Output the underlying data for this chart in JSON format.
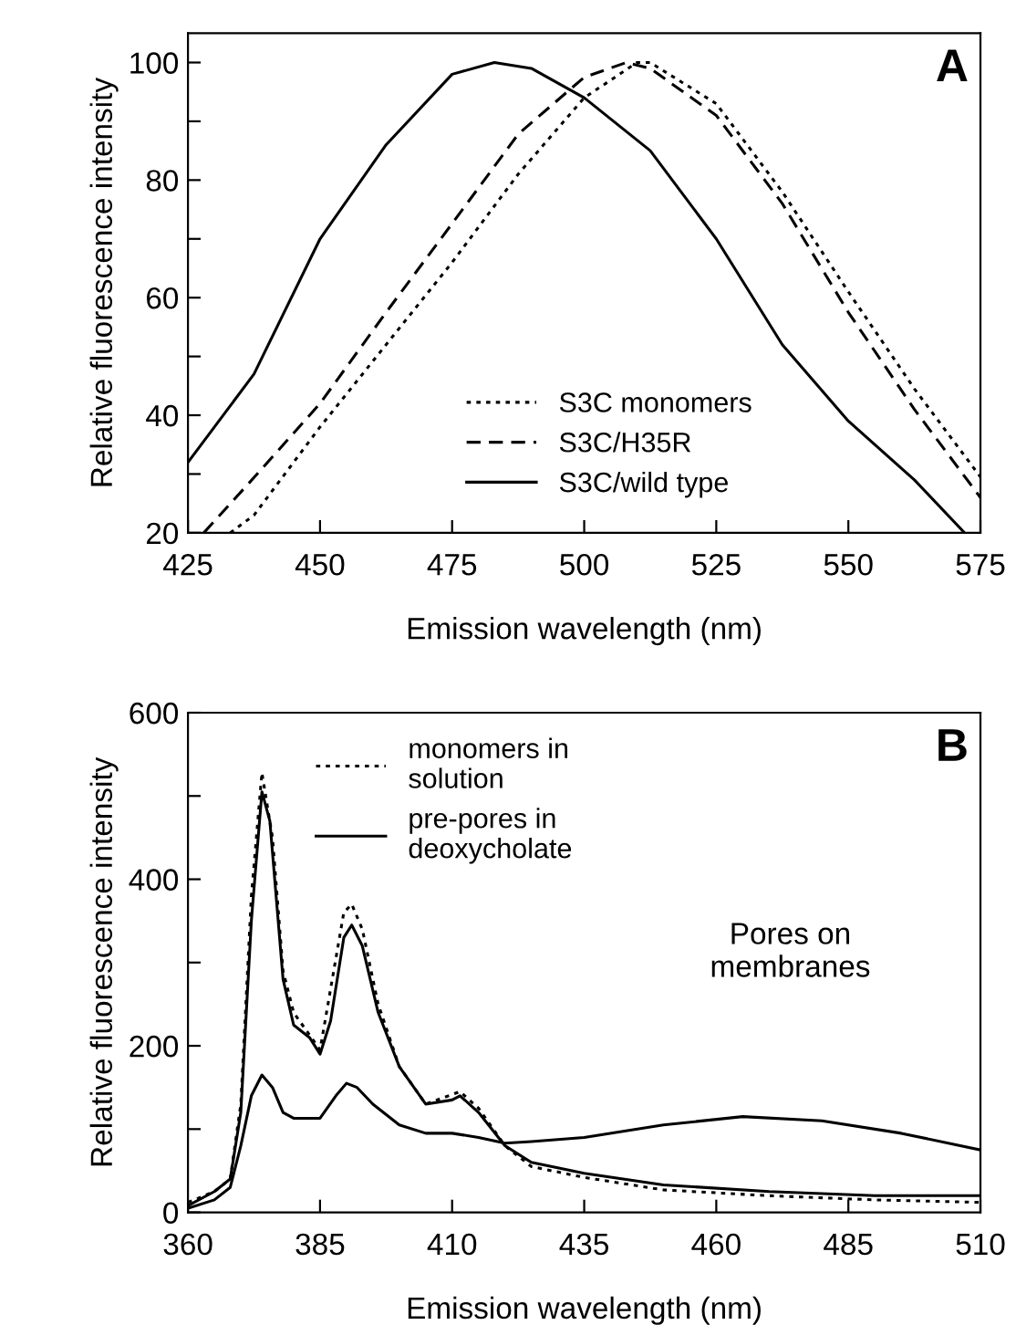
{
  "chart_data": [
    {
      "type": "line",
      "xlabel": "Emission wavelength (nm)",
      "ylabel": "Relative fluorescence intensity",
      "annotations": [
        "A"
      ],
      "xlim": [
        425,
        575
      ],
      "ylim": [
        20,
        105
      ],
      "xticks": [
        425,
        450,
        475,
        500,
        525,
        550,
        575
      ],
      "yticks": [
        20,
        {
          "value": 30,
          "label": null
        },
        40,
        {
          "value": 50,
          "label": null
        },
        60,
        {
          "value": 70,
          "label": null
        },
        80,
        {
          "value": 90,
          "label": null
        },
        100
      ],
      "legend": "bottom",
      "grid": false,
      "series": [
        {
          "name": "S3C monomers",
          "color": "#000000",
          "line_style": "dotted",
          "x": [
            433,
            437.5,
            450,
            462.5,
            475,
            487.5,
            500,
            510,
            512.5,
            525,
            537.5,
            550,
            562.5,
            575
          ],
          "values": [
            20,
            23,
            38,
            52,
            66,
            81,
            94,
            100,
            100,
            93,
            78,
            61,
            44.5,
            29.5
          ]
        },
        {
          "name": "S3C/H35R",
          "color": "#000000",
          "line_style": "dashed",
          "x": [
            428,
            437.5,
            450,
            462.5,
            475,
            487.5,
            500,
            508,
            512.5,
            525,
            537.5,
            550,
            562.5,
            575
          ],
          "values": [
            20,
            29.4,
            42,
            57.5,
            72.6,
            87.8,
            97.5,
            100,
            99,
            91,
            76,
            57.5,
            41,
            26
          ]
        },
        {
          "name": "S3C/wild type",
          "color": "#000000",
          "line_style": "solid",
          "x": [
            425,
            437.5,
            450,
            462.5,
            475,
            483,
            490,
            500,
            512.5,
            525,
            537.5,
            550,
            562.5,
            572
          ],
          "values": [
            32,
            47,
            70,
            86,
            98,
            100,
            99,
            94,
            85,
            70,
            52,
            39,
            29,
            20
          ]
        }
      ]
    },
    {
      "type": "line",
      "xlabel": "Emission wavelength (nm)",
      "ylabel": "Relative fluorescence intensity",
      "annotations": [
        "B",
        "Pores on\nmembranes"
      ],
      "xlim": [
        360,
        510
      ],
      "ylim": [
        0,
        600
      ],
      "xticks": [
        360,
        385,
        410,
        435,
        460,
        485,
        510
      ],
      "yticks": [
        0,
        {
          "value": 100,
          "label": null
        },
        200,
        {
          "value": 300,
          "label": null
        },
        400,
        {
          "value": 500,
          "label": null
        },
        600
      ],
      "legend": "top left",
      "grid": false,
      "series": [
        {
          "name": "monomers in\nsolution",
          "color": "#000000",
          "line_style": "dotted",
          "x": [
            360,
            365,
            368,
            370,
            372,
            374,
            376,
            378,
            380,
            385,
            389.5,
            391,
            393,
            396,
            400,
            405,
            411.5,
            415,
            420,
            425,
            435,
            450,
            470,
            490,
            510
          ],
          "values": [
            12,
            25,
            40,
            130,
            380,
            528,
            450,
            290,
            240,
            195,
            360,
            370,
            340,
            250,
            175,
            130,
            145,
            125,
            80,
            55,
            42,
            27,
            20,
            15,
            12
          ]
        },
        {
          "name": "pre-pores in\ndeoxycholate",
          "color": "#000000",
          "line_style": "solid",
          "x": [
            360,
            365,
            368,
            370,
            372,
            374,
            375.5,
            378,
            380,
            383,
            385,
            387,
            389.5,
            391,
            393,
            396,
            400,
            405,
            410,
            411.5,
            415,
            420,
            425,
            435,
            450,
            470,
            490,
            510
          ],
          "values": [
            8,
            25,
            40,
            120,
            350,
            505,
            470,
            280,
            225,
            210,
            190,
            230,
            330,
            345,
            320,
            240,
            175,
            130,
            135,
            140,
            120,
            80,
            60,
            47,
            33,
            25,
            20,
            20
          ]
        },
        {
          "color": "#000000",
          "line_style": "solid",
          "x": [
            360,
            365,
            368,
            370,
            372,
            374,
            376,
            378,
            380,
            385,
            388,
            390,
            392,
            395,
            400,
            405,
            410,
            415,
            420,
            425,
            435,
            450,
            465,
            480,
            495,
            510
          ],
          "values": [
            5,
            15,
            30,
            80,
            140,
            165,
            150,
            120,
            113,
            113,
            140,
            155,
            150,
            130,
            105,
            95,
            95,
            90,
            83,
            85,
            90,
            105,
            115,
            110,
            95,
            75
          ]
        }
      ]
    }
  ]
}
